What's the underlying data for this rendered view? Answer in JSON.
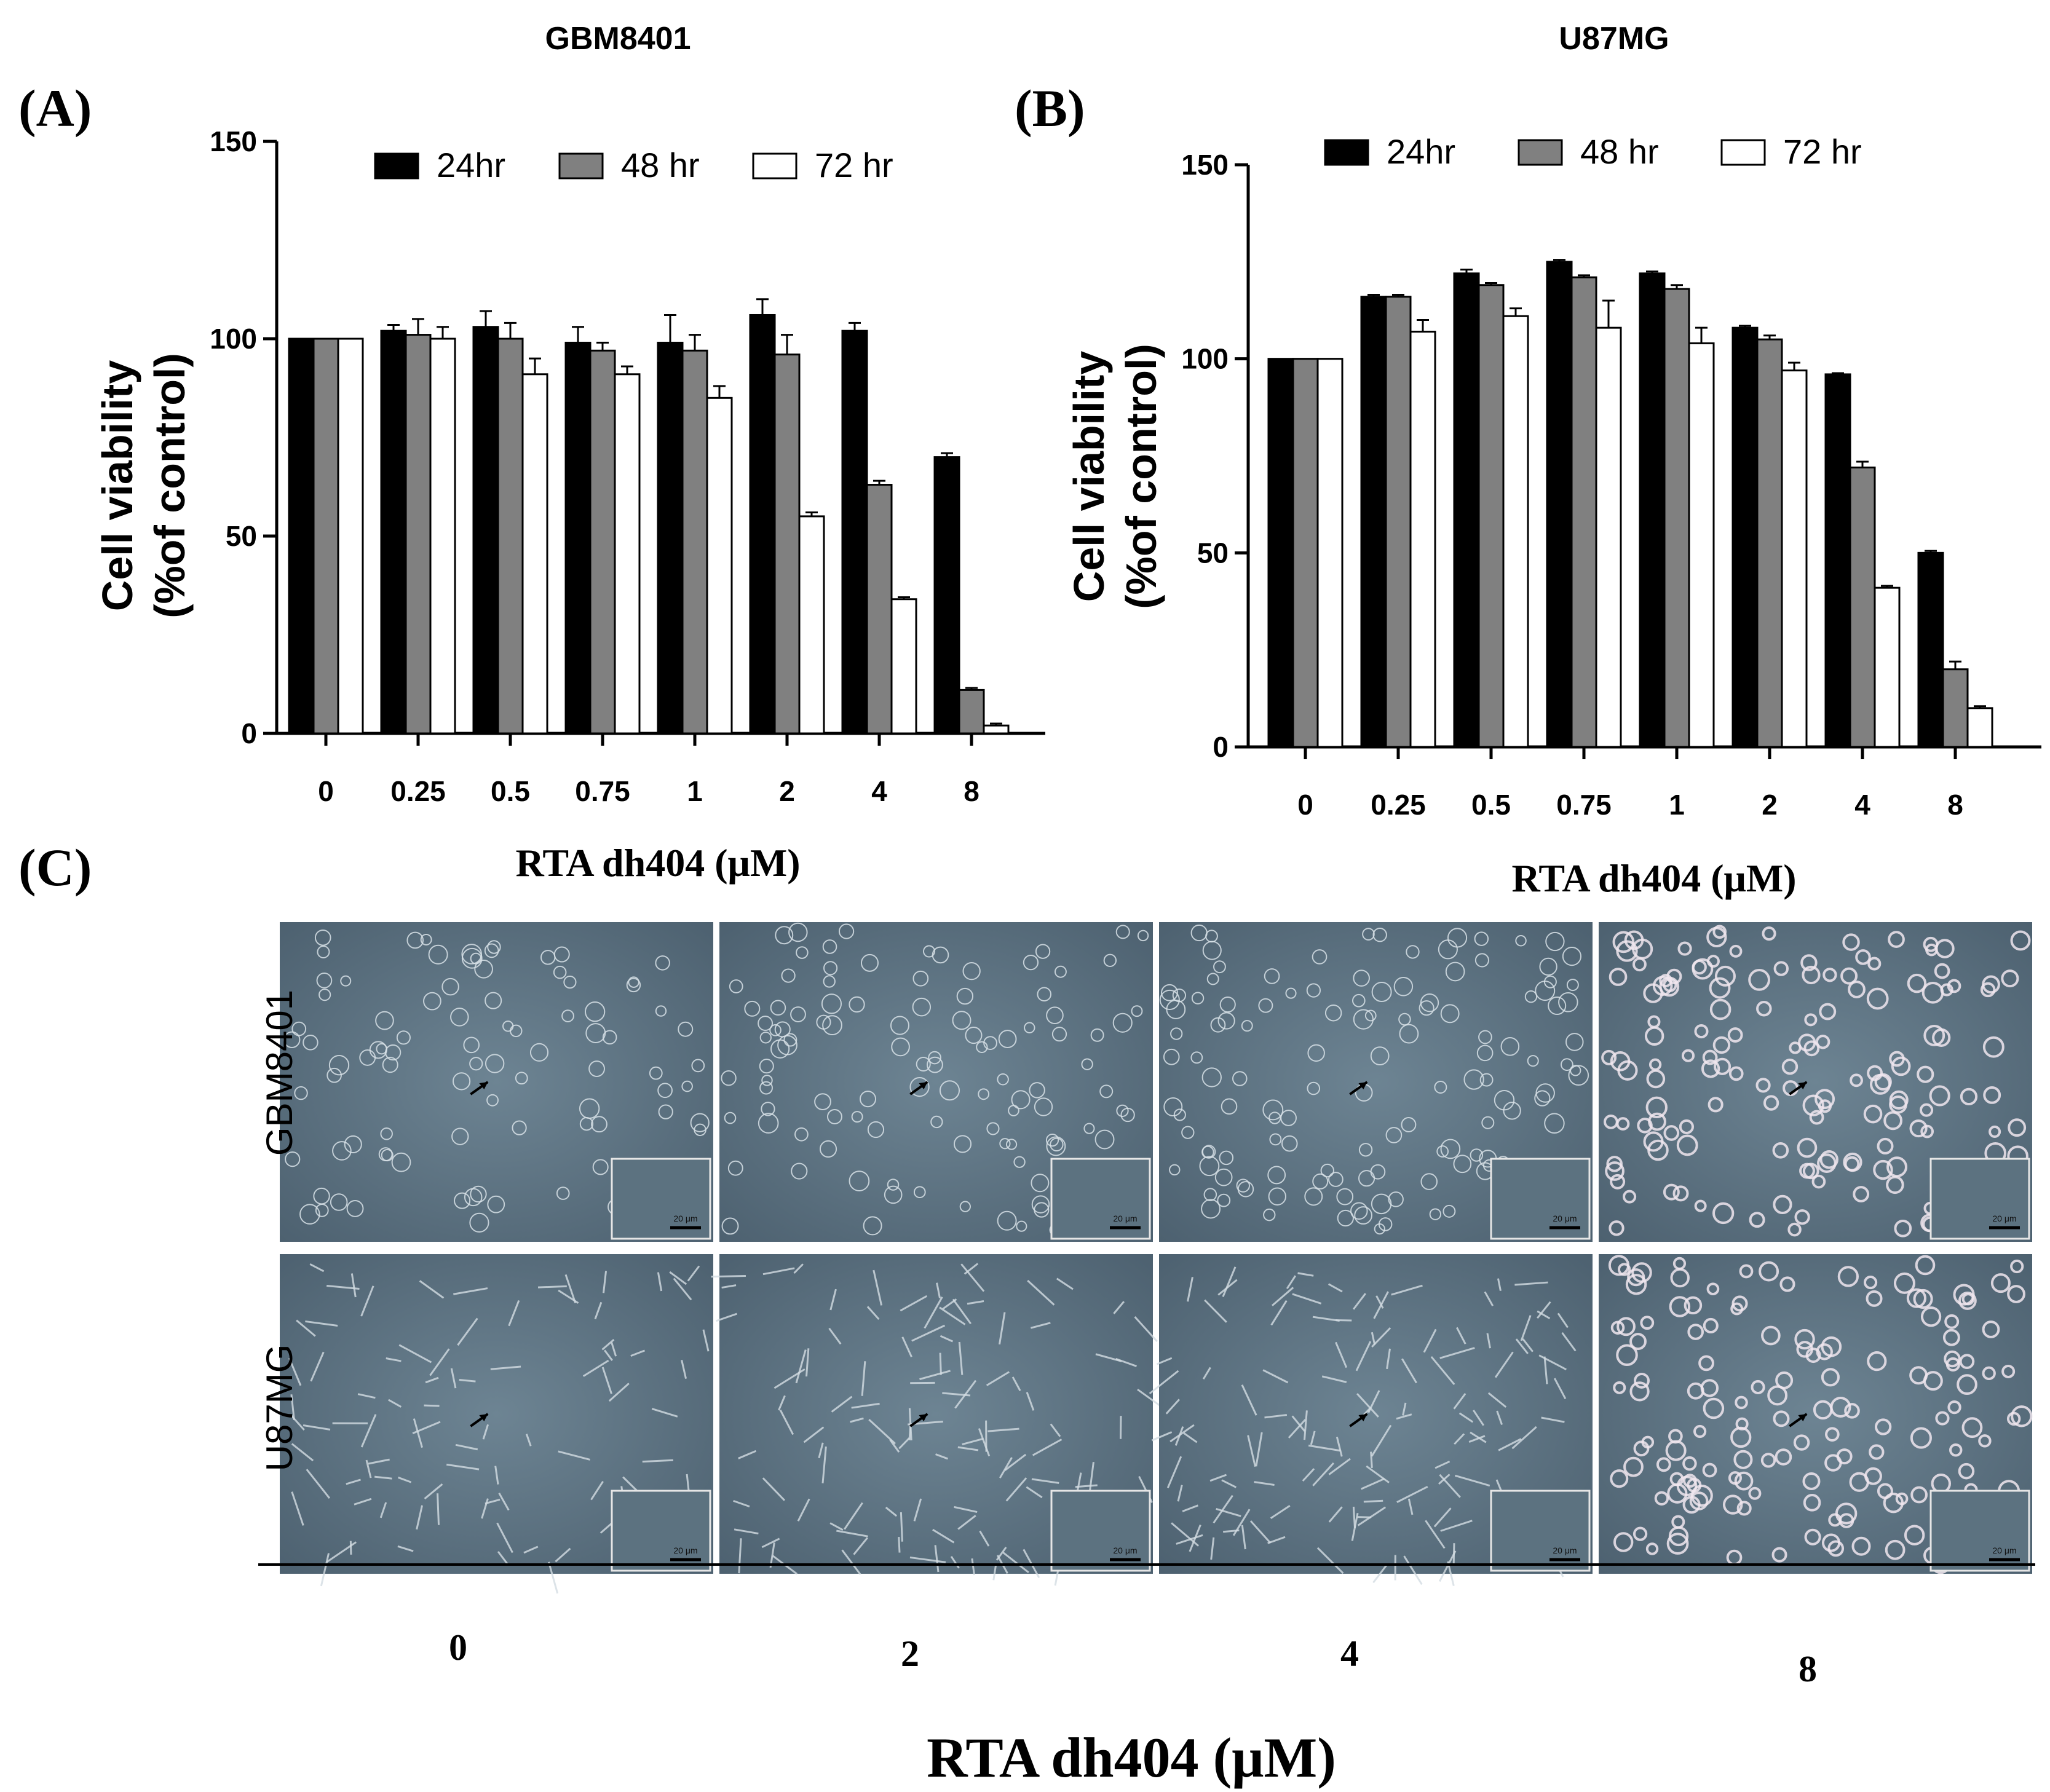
{
  "panel_labels": {
    "a": "(A)",
    "b": "(B)",
    "c": "(C)"
  },
  "colors": {
    "series_24": "#000000",
    "series_48": "#808080",
    "series_72": "#ffffff",
    "micrograph": "#5f7585"
  },
  "chart_data": [
    {
      "id": "chart-a",
      "type": "bar",
      "title": "GBM8401",
      "xlabel": "RTA dh404 (μM)",
      "ylabel": "Cell viability",
      "ylabel2": "(%of control)",
      "ylim": [
        0,
        150
      ],
      "yticks": [
        "0",
        "50",
        "100",
        "150"
      ],
      "categories": [
        "0",
        "0.25",
        "0.5",
        "0.75",
        "1",
        "2",
        "4",
        "8"
      ],
      "legend_position": "top",
      "series": [
        {
          "name": "24hr",
          "color": "#000000",
          "values": [
            100,
            102,
            103,
            99,
            99,
            106,
            102,
            70
          ],
          "errors": [
            0,
            1.5,
            4,
            4,
            7,
            4,
            2,
            1
          ]
        },
        {
          "name": "48 hr",
          "color": "#808080",
          "values": [
            100,
            101,
            100,
            97,
            97,
            96,
            63,
            11
          ],
          "errors": [
            0,
            4,
            4,
            2,
            4,
            5,
            1,
            0.5
          ]
        },
        {
          "name": "72 hr",
          "color": "#ffffff",
          "values": [
            100,
            100,
            91,
            91,
            85,
            55,
            34,
            2
          ],
          "errors": [
            0,
            3,
            4,
            2,
            3,
            1,
            0.5,
            0.5
          ]
        }
      ]
    },
    {
      "id": "chart-b",
      "type": "bar",
      "title": "U87MG",
      "xlabel": "RTA dh404 (μM)",
      "ylabel": "Cell viability",
      "ylabel2": "(%of control)",
      "ylim": [
        0,
        150
      ],
      "yticks": [
        "0",
        "50",
        "100",
        "150"
      ],
      "categories": [
        "0",
        "0.25",
        "0.5",
        "0.75",
        "1",
        "2",
        "4",
        "8"
      ],
      "legend_position": "top",
      "series": [
        {
          "name": "24hr",
          "color": "#000000",
          "values": [
            100,
            116,
            122,
            125,
            122,
            108,
            96,
            50
          ],
          "errors": [
            0,
            0.5,
            1,
            0.5,
            0.5,
            0.5,
            0.3,
            0.5
          ]
        },
        {
          "name": "48 hr",
          "color": "#808080",
          "values": [
            100,
            116,
            119,
            121,
            118,
            105,
            72,
            20
          ],
          "errors": [
            0,
            0.5,
            0.5,
            0.5,
            1,
            1,
            1.5,
            2
          ]
        },
        {
          "name": "72 hr",
          "color": "#ffffff",
          "values": [
            100,
            107,
            111,
            108,
            104,
            97,
            41,
            10
          ],
          "errors": [
            0,
            3,
            2,
            7,
            4,
            2,
            0.5,
            0.5
          ]
        }
      ]
    }
  ],
  "panel_c": {
    "row_labels": [
      "GBM8401",
      "U87MG"
    ],
    "concentrations": [
      "0",
      "2",
      "4",
      "8"
    ],
    "xlabel": "RTA dh404 (μM)",
    "scale_bar": "20 μm"
  }
}
